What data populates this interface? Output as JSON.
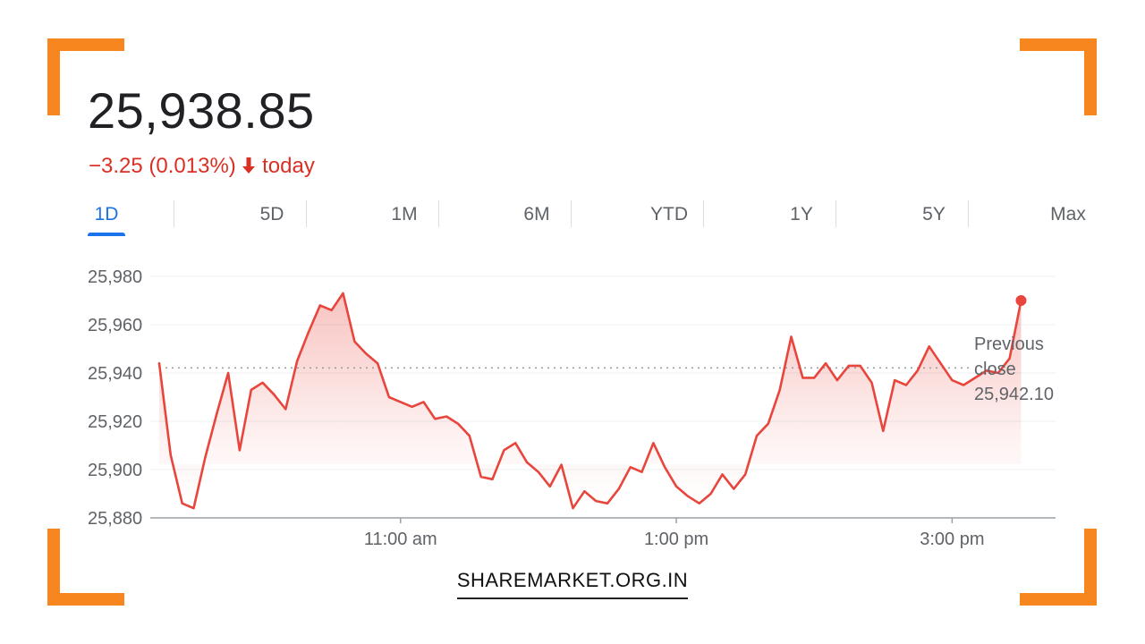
{
  "quote": {
    "price": "25,938.85",
    "change_text": "−3.25 (0.013%)",
    "change_suffix": "today",
    "direction_icon": "arrow-down-icon",
    "color_down": "#d93025"
  },
  "tabs": {
    "items": [
      "1D",
      "5D",
      "1M",
      "6M",
      "YTD",
      "1Y",
      "5Y",
      "Max"
    ],
    "active": "1D",
    "active_color": "#1a73e8"
  },
  "previous_close": {
    "line1": "Previous",
    "line2": "close",
    "value": "25,942.10",
    "numeric": 25942.1
  },
  "footer": {
    "brand": "SHAREMARKET.ORG.IN"
  },
  "frame_color": "#f7861e",
  "chart_data": {
    "type": "area",
    "ylim": [
      25880,
      25980
    ],
    "xlim": [
      "09:15",
      "15:45"
    ],
    "y_ticks": [
      25880,
      25900,
      25920,
      25940,
      25960,
      25980
    ],
    "y_tick_labels": [
      "25,880",
      "25,900",
      "25,920",
      "25,940",
      "25,960",
      "25,980"
    ],
    "x_ticks": [
      "11:00",
      "13:00",
      "15:00"
    ],
    "x_tick_labels": [
      "11:00 am",
      "1:00 pm",
      "3:00 pm"
    ],
    "grid": true,
    "line_color": "#e8453c",
    "series": [
      {
        "x": [
          "09:15",
          "09:20",
          "09:25",
          "09:30",
          "09:35",
          "09:40",
          "09:45",
          "09:50",
          "09:55",
          "10:00",
          "10:05",
          "10:10",
          "10:15",
          "10:20",
          "10:25",
          "10:30",
          "10:35",
          "10:40",
          "10:45",
          "10:50",
          "10:55",
          "11:00",
          "11:05",
          "11:10",
          "11:15",
          "11:20",
          "11:25",
          "11:30",
          "11:35",
          "11:40",
          "11:45",
          "11:50",
          "11:55",
          "12:00",
          "12:05",
          "12:10",
          "12:15",
          "12:20",
          "12:25",
          "12:30",
          "12:35",
          "12:40",
          "12:45",
          "12:50",
          "12:55",
          "13:00",
          "13:05",
          "13:10",
          "13:15",
          "13:20",
          "13:25",
          "13:30",
          "13:35",
          "13:40",
          "13:45",
          "13:50",
          "13:55",
          "14:00",
          "14:05",
          "14:10",
          "14:15",
          "14:20",
          "14:25",
          "14:30",
          "14:35",
          "14:40",
          "14:45",
          "14:50",
          "14:55",
          "15:00",
          "15:05",
          "15:10",
          "15:15",
          "15:20",
          "15:25",
          "15:30"
        ],
        "y": [
          25944,
          25906,
          25886,
          25884,
          25905,
          25923,
          25940,
          25908,
          25933,
          25936,
          25931,
          25925,
          25945,
          25957,
          25968,
          25966,
          25973,
          25953,
          25948,
          25944,
          25930,
          25928,
          25926,
          25928,
          25921,
          25922,
          25919,
          25914,
          25897,
          25896,
          25908,
          25911,
          25903,
          25899,
          25893,
          25902,
          25884,
          25891,
          25887,
          25886,
          25892,
          25901,
          25899,
          25911,
          25901,
          25893,
          25889,
          25886,
          25890,
          25898,
          25892,
          25898,
          25914,
          25919,
          25933,
          25955,
          25938,
          25938,
          25944,
          25937,
          25943,
          25943,
          25936,
          25916,
          25937,
          25935,
          25941,
          25951,
          25944,
          25937,
          25935,
          25938,
          25941,
          25940,
          25946,
          25970
        ]
      }
    ],
    "reference_line": {
      "value": 25942.1
    }
  }
}
